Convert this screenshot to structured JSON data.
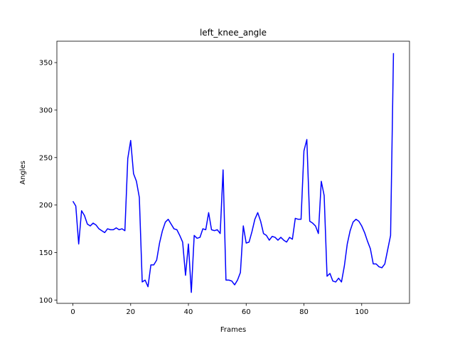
{
  "chart_data": {
    "type": "line",
    "title": "left_knee_angle",
    "xlabel": "Frames",
    "ylabel": "Angles",
    "xlim": [
      -5.55,
      116.55
    ],
    "ylim": [
      96.5,
      372.5
    ],
    "xticks": [
      0,
      20,
      40,
      60,
      80,
      100
    ],
    "yticks": [
      100,
      150,
      200,
      250,
      300,
      350
    ],
    "grid": false,
    "legend": "none",
    "series": [
      {
        "color": "#0000ff",
        "x": [
          0,
          1,
          2,
          3,
          4,
          5,
          6,
          7,
          8,
          9,
          10,
          11,
          12,
          13,
          14,
          15,
          16,
          17,
          18,
          19,
          20,
          21,
          22,
          23,
          24,
          25,
          26,
          27,
          28,
          29,
          30,
          31,
          32,
          33,
          34,
          35,
          36,
          37,
          38,
          39,
          40,
          41,
          42,
          43,
          44,
          45,
          46,
          47,
          48,
          49,
          50,
          51,
          52,
          53,
          54,
          55,
          56,
          57,
          58,
          59,
          60,
          61,
          62,
          63,
          64,
          65,
          66,
          67,
          68,
          69,
          70,
          71,
          72,
          73,
          74,
          75,
          76,
          77,
          78,
          79,
          80,
          81,
          82,
          83,
          84,
          85,
          86,
          87,
          88,
          89,
          90,
          91,
          92,
          93,
          94,
          95,
          96,
          97,
          98,
          99,
          100,
          101,
          102,
          103,
          104,
          105,
          106,
          107,
          108,
          109,
          110,
          111
        ],
        "values": [
          204,
          199,
          159,
          194,
          189,
          180,
          178,
          181,
          179,
          175,
          173,
          171,
          175,
          174,
          174,
          176,
          174,
          175,
          173,
          249,
          268,
          233,
          225,
          208,
          119,
          121,
          114,
          137,
          137,
          142,
          160,
          173,
          182,
          185,
          180,
          175,
          174,
          168,
          161,
          126,
          159,
          108,
          168,
          165,
          166,
          175,
          174,
          192,
          174,
          173,
          174,
          170,
          237,
          121,
          121,
          120,
          116,
          121,
          129,
          178,
          160,
          161,
          172,
          185,
          192,
          183,
          170,
          168,
          163,
          167,
          166,
          163,
          166,
          163,
          161,
          166,
          164,
          186,
          185,
          185,
          257,
          269,
          183,
          181,
          178,
          170,
          225,
          210,
          125,
          128,
          120,
          119,
          123,
          119,
          136,
          159,
          173,
          182,
          185,
          183,
          178,
          171,
          162,
          154,
          138,
          138,
          135,
          134,
          138,
          153,
          168,
          360
        ]
      }
    ]
  }
}
